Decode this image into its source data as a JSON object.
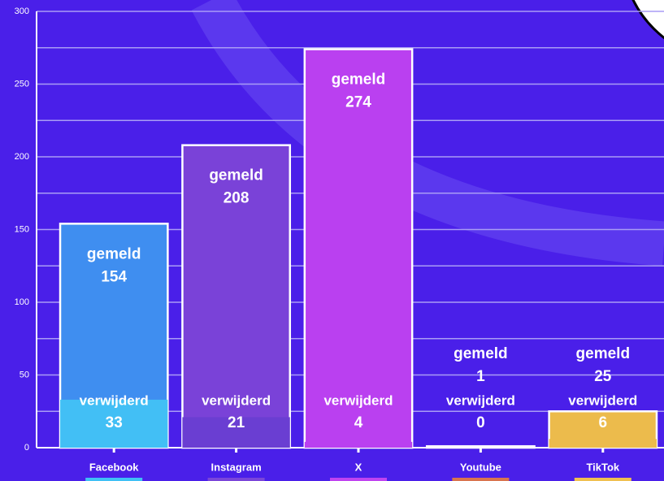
{
  "chart_data": {
    "type": "bar",
    "categories": [
      "Facebook",
      "Instagram",
      "X",
      "Youtube",
      "TikTok"
    ],
    "category_colors": [
      "#3fc0f5",
      "#7b45d9",
      "#c043f0",
      "#d9744e",
      "#f0c050"
    ],
    "series": [
      {
        "name": "gemeld",
        "colors": [
          "#3f8ef0",
          "#7a42d8",
          "#ba40f0",
          "#b45080",
          "#ecbb4c"
        ],
        "values": [
          154,
          208,
          274,
          1,
          25
        ]
      },
      {
        "name": "verwijderd",
        "colors": [
          "#42bff5",
          "#6a3ed2",
          "#ba40f0",
          "#b45080",
          "#ecbb4c"
        ],
        "values": [
          33,
          21,
          4,
          0,
          6
        ]
      }
    ],
    "ylim": [
      0,
      300
    ],
    "yticks": [
      0,
      50,
      100,
      150,
      200,
      250,
      300
    ],
    "minor_grid": [
      25,
      75,
      125,
      175,
      225,
      275
    ],
    "grid": true
  }
}
